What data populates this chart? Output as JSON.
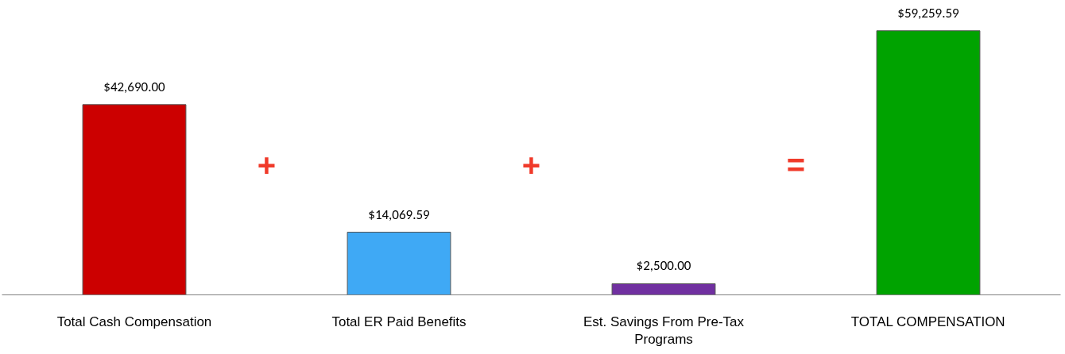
{
  "chart_data": {
    "type": "bar",
    "categories": [
      "Total Cash Compensation",
      "Total ER Paid Benefits",
      "Est. Savings From Pre-Tax Programs",
      "TOTAL COMPENSATION"
    ],
    "values": [
      42690.0,
      14069.59,
      2500.0,
      59259.59
    ],
    "colors": [
      "#cc0000",
      "#3fa9f5",
      "#7030a0",
      "#00a300"
    ],
    "value_labels": [
      "$42,690.00",
      "$14,069.59",
      "$2,500.00",
      "$59,259.59"
    ],
    "annotations": [
      "+",
      "+",
      "="
    ],
    "grid": false
  }
}
